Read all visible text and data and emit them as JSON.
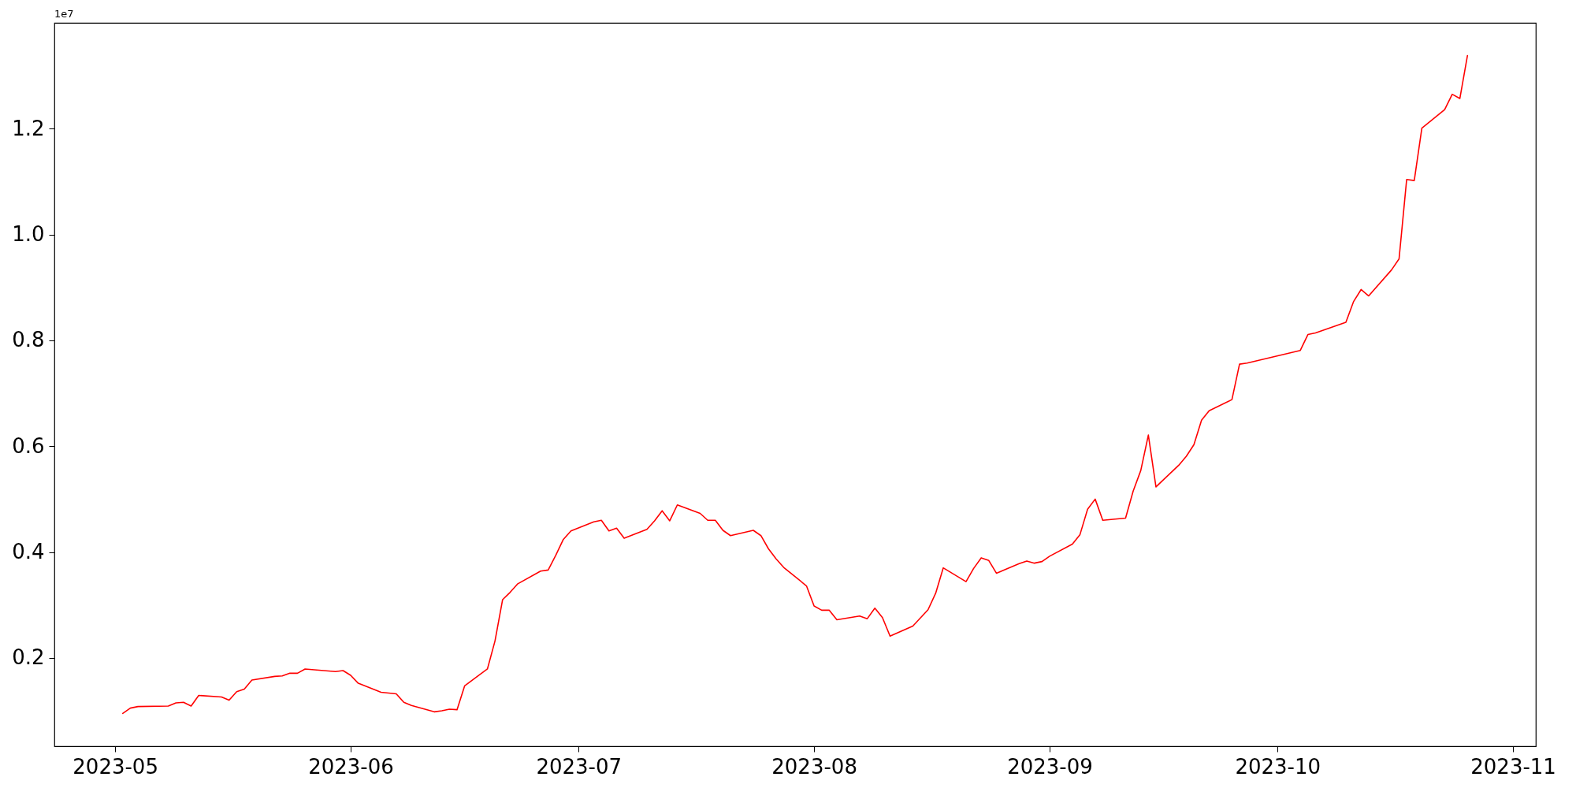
{
  "chart_data": {
    "type": "line",
    "annotations": [
      "1e7"
    ],
    "x": [
      "2023-05-02",
      "2023-05-03",
      "2023-05-04",
      "2023-05-08",
      "2023-05-09",
      "2023-05-10",
      "2023-05-11",
      "2023-05-12",
      "2023-05-15",
      "2023-05-16",
      "2023-05-17",
      "2023-05-18",
      "2023-05-19",
      "2023-05-22",
      "2023-05-23",
      "2023-05-24",
      "2023-05-25",
      "2023-05-26",
      "2023-05-30",
      "2023-05-31",
      "2023-06-01",
      "2023-06-02",
      "2023-06-05",
      "2023-06-07",
      "2023-06-08",
      "2023-06-09",
      "2023-06-12",
      "2023-06-13",
      "2023-06-14",
      "2023-06-15",
      "2023-06-16",
      "2023-06-19",
      "2023-06-20",
      "2023-06-21",
      "2023-06-22",
      "2023-06-23",
      "2023-06-26",
      "2023-06-27",
      "2023-06-28",
      "2023-06-29",
      "2023-06-30",
      "2023-07-03",
      "2023-07-04",
      "2023-07-05",
      "2023-07-06",
      "2023-07-07",
      "2023-07-10",
      "2023-07-11",
      "2023-07-12",
      "2023-07-13",
      "2023-07-14",
      "2023-07-17",
      "2023-07-18",
      "2023-07-19",
      "2023-07-20",
      "2023-07-21",
      "2023-07-24",
      "2023-07-25",
      "2023-07-26",
      "2023-07-27",
      "2023-07-28",
      "2023-07-31",
      "2023-08-01",
      "2023-08-02",
      "2023-08-03",
      "2023-08-04",
      "2023-08-07",
      "2023-08-08",
      "2023-08-09",
      "2023-08-10",
      "2023-08-11",
      "2023-08-14",
      "2023-08-16",
      "2023-08-17",
      "2023-08-18",
      "2023-08-21",
      "2023-08-22",
      "2023-08-23",
      "2023-08-24",
      "2023-08-25",
      "2023-08-28",
      "2023-08-29",
      "2023-08-30",
      "2023-08-31",
      "2023-09-01",
      "2023-09-04",
      "2023-09-05",
      "2023-09-06",
      "2023-09-07",
      "2023-09-08",
      "2023-09-11",
      "2023-09-12",
      "2023-09-13",
      "2023-09-14",
      "2023-09-15",
      "2023-09-18",
      "2023-09-19",
      "2023-09-20",
      "2023-09-21",
      "2023-09-22",
      "2023-09-25",
      "2023-09-26",
      "2023-09-27",
      "2023-10-04",
      "2023-10-05",
      "2023-10-06",
      "2023-10-10",
      "2023-10-11",
      "2023-10-12",
      "2023-10-13",
      "2023-10-16",
      "2023-10-17",
      "2023-10-18",
      "2023-10-19",
      "2023-10-20",
      "2023-10-23",
      "2023-10-24",
      "2023-10-25",
      "2023-10-26"
    ],
    "series": [
      {
        "color": "#ff0000",
        "values": [
          0.095,
          0.105,
          0.108,
          0.109,
          0.115,
          0.116,
          0.109,
          0.129,
          0.126,
          0.12,
          0.136,
          0.141,
          0.158,
          0.165,
          0.166,
          0.171,
          0.171,
          0.179,
          0.174,
          0.176,
          0.167,
          0.152,
          0.135,
          0.132,
          0.116,
          0.11,
          0.098,
          0.1,
          0.103,
          0.102,
          0.147,
          0.179,
          0.232,
          0.31,
          0.324,
          0.34,
          0.364,
          0.366,
          0.394,
          0.424,
          0.44,
          0.457,
          0.46,
          0.44,
          0.445,
          0.426,
          0.443,
          0.459,
          0.478,
          0.459,
          0.489,
          0.473,
          0.46,
          0.46,
          0.441,
          0.431,
          0.441,
          0.431,
          0.406,
          0.387,
          0.371,
          0.336,
          0.298,
          0.29,
          0.29,
          0.272,
          0.279,
          0.274,
          0.294,
          0.276,
          0.241,
          0.26,
          0.291,
          0.322,
          0.37,
          0.344,
          0.369,
          0.389,
          0.384,
          0.36,
          0.378,
          0.383,
          0.379,
          0.382,
          0.392,
          0.415,
          0.433,
          0.481,
          0.5,
          0.46,
          0.464,
          0.515,
          0.554,
          0.621,
          0.523,
          0.564,
          0.581,
          0.603,
          0.649,
          0.667,
          0.688,
          0.755,
          0.757,
          0.781,
          0.811,
          0.814,
          0.834,
          0.873,
          0.896,
          0.884,
          0.933,
          0.954,
          1.104,
          1.102,
          1.201,
          1.236,
          1.265,
          1.257,
          1.338
        ]
      }
    ],
    "xlim": [
      "2023-04-23",
      "2023-11-04"
    ],
    "ylim": [
      0.033,
      1.4
    ],
    "xticks": [
      {
        "value": "2023-05-01",
        "label": "2023-05"
      },
      {
        "value": "2023-06-01",
        "label": "2023-06"
      },
      {
        "value": "2023-07-01",
        "label": "2023-07"
      },
      {
        "value": "2023-08-01",
        "label": "2023-08"
      },
      {
        "value": "2023-09-01",
        "label": "2023-09"
      },
      {
        "value": "2023-10-01",
        "label": "2023-10"
      },
      {
        "value": "2023-11-01",
        "label": "2023-11"
      }
    ],
    "yticks": [
      0.2,
      0.4,
      0.6,
      0.8,
      {
        "value": 1,
        "label": "1.0"
      },
      1.2
    ]
  }
}
